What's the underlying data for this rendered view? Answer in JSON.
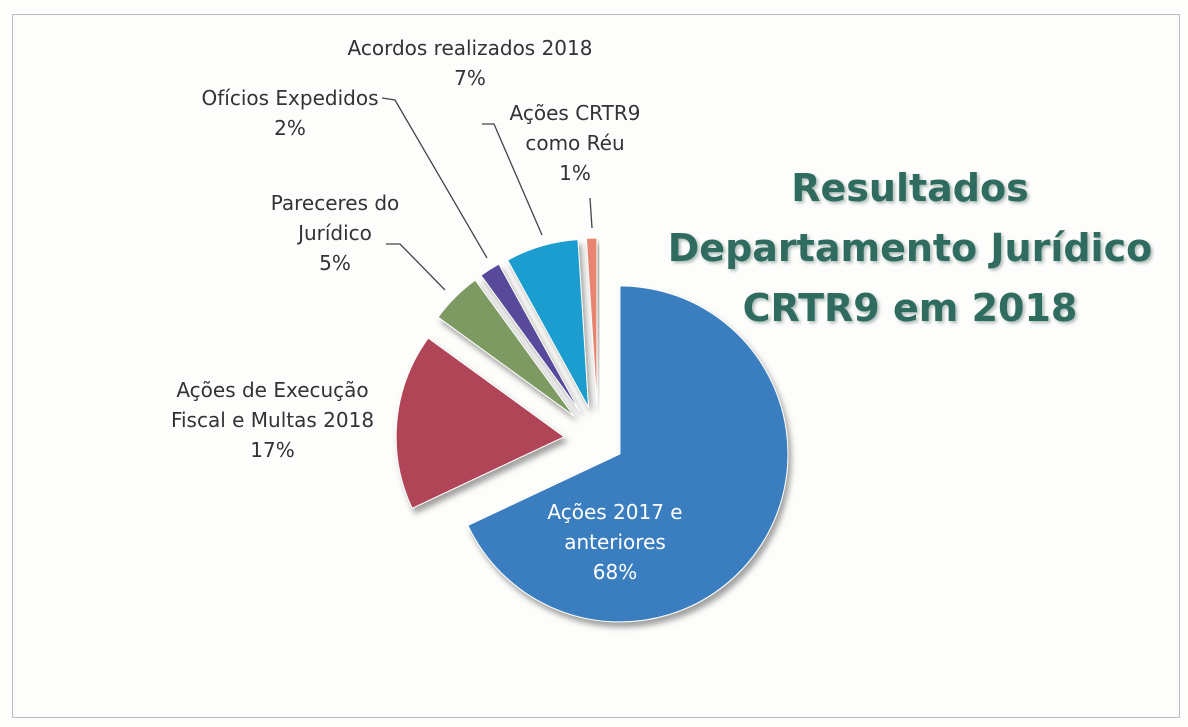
{
  "chart_data": {
    "type": "pie",
    "title": "Resultados Departamento Jurídico CRTR9 em 2018",
    "categories": [
      "Ações 2017 e anteriores",
      "Ações de Execução Fiscal e Multas 2018",
      "Pareceres do Jurídico",
      "Ofícios Expedidos",
      "Acordos realizados 2018",
      "Ações CRTR9 como Réu"
    ],
    "values": [
      68,
      17,
      5,
      2,
      7,
      1
    ],
    "value_labels": [
      "68%",
      "17%",
      "5%",
      "2%",
      "7%",
      "1%"
    ],
    "colors": [
      "#3a7ec0",
      "#b04559",
      "#7c9a62",
      "#594a9a",
      "#1f9dcf",
      "#e8846f"
    ]
  }
}
